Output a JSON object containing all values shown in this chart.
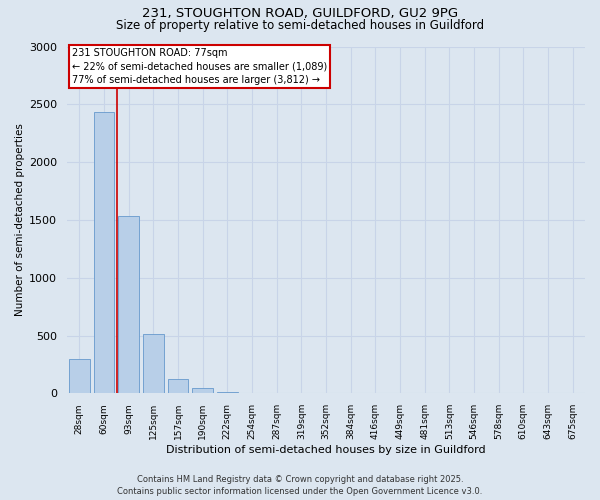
{
  "title_line1": "231, STOUGHTON ROAD, GUILDFORD, GU2 9PG",
  "title_line2": "Size of property relative to semi-detached houses in Guildford",
  "xlabel": "Distribution of semi-detached houses by size in Guildford",
  "ylabel": "Number of semi-detached properties",
  "bin_labels": [
    "28sqm",
    "60sqm",
    "93sqm",
    "125sqm",
    "157sqm",
    "190sqm",
    "222sqm",
    "254sqm",
    "287sqm",
    "319sqm",
    "352sqm",
    "384sqm",
    "416sqm",
    "449sqm",
    "481sqm",
    "513sqm",
    "546sqm",
    "578sqm",
    "610sqm",
    "643sqm",
    "675sqm"
  ],
  "bar_values": [
    300,
    2430,
    1530,
    510,
    125,
    50,
    10,
    5,
    2,
    1,
    1,
    0,
    0,
    0,
    0,
    0,
    0,
    0,
    0,
    0,
    0
  ],
  "bar_color": "#b8cfe8",
  "bar_edgecolor": "#6699cc",
  "annotation_title": "231 STOUGHTON ROAD: 77sqm",
  "annotation_line1": "← 22% of semi-detached houses are smaller (1,089)",
  "annotation_line2": "77% of semi-detached houses are larger (3,812) →",
  "annotation_box_color": "#ffffff",
  "annotation_box_edgecolor": "#cc0000",
  "red_line_color": "#cc0000",
  "ylim": [
    0,
    3000
  ],
  "yticks": [
    0,
    500,
    1000,
    1500,
    2000,
    2500,
    3000
  ],
  "grid_color": "#c8d4e8",
  "background_color": "#dce6f0",
  "footer_line1": "Contains HM Land Registry data © Crown copyright and database right 2025.",
  "footer_line2": "Contains public sector information licensed under the Open Government Licence v3.0."
}
